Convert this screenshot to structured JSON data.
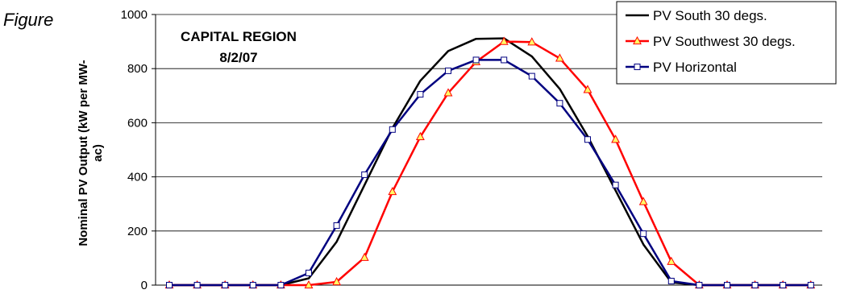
{
  "figure_label": "Figure",
  "chart_data": {
    "type": "line",
    "title": "",
    "annotation": [
      "CAPITAL REGION",
      "8/2/07"
    ],
    "ylabel": [
      "Nominal PV Output (kW per MW-",
      "ac)"
    ],
    "xlabel": "",
    "ylim": [
      0,
      1000
    ],
    "yticks": [
      0,
      200,
      400,
      600,
      800,
      1000
    ],
    "grid": true,
    "legend_position": "top-right",
    "x": [
      1,
      2,
      3,
      4,
      5,
      6,
      7,
      8,
      9,
      10,
      11,
      12,
      13,
      14,
      15,
      16,
      17,
      18,
      19,
      20,
      21,
      22,
      23,
      24
    ],
    "series": [
      {
        "name": "PV South 30 degs.",
        "color": "#000000",
        "marker": "none",
        "values": [
          0,
          0,
          0,
          0,
          0,
          25,
          160,
          370,
          580,
          755,
          865,
          910,
          912,
          845,
          725,
          550,
          350,
          150,
          10,
          0,
          0,
          0,
          0,
          0
        ]
      },
      {
        "name": "PV Southwest 30 degs.",
        "color": "#ff0000",
        "marker": "triangle",
        "marker_fill": "#ffff66",
        "values": [
          0,
          0,
          0,
          0,
          0,
          0,
          12,
          102,
          345,
          548,
          710,
          825,
          900,
          898,
          838,
          722,
          538,
          308,
          87,
          0,
          0,
          0,
          0,
          0
        ]
      },
      {
        "name": "PV Horizontal",
        "color": "#000080",
        "marker": "square",
        "marker_fill": "#ffffff",
        "values": [
          0,
          0,
          0,
          0,
          0,
          45,
          220,
          408,
          575,
          705,
          792,
          832,
          832,
          772,
          672,
          538,
          370,
          190,
          15,
          0,
          0,
          0,
          0,
          0
        ]
      }
    ]
  }
}
